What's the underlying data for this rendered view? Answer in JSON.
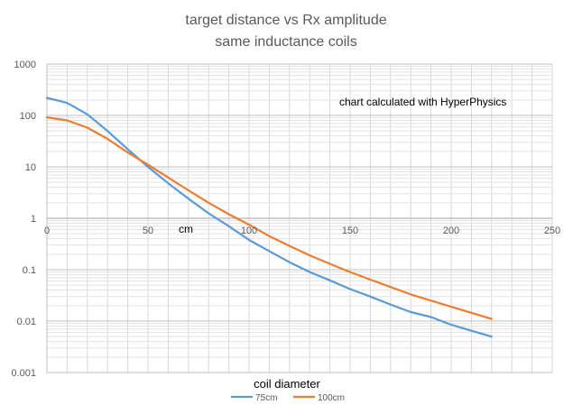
{
  "chart_data": {
    "type": "line",
    "title": [
      "target distance vs Rx amplitude",
      "same inductance coils"
    ],
    "xlabel": "coil diameter",
    "xunit_label": "cm",
    "annotation": "chart calculated with HyperPhysics",
    "x_ticks": [
      "0",
      "50",
      "100",
      "150",
      "200",
      "250"
    ],
    "y_ticks": [
      "1000",
      "100",
      "10",
      "1",
      "0.1",
      "0.01",
      "0.001"
    ],
    "xlim": [
      0,
      250
    ],
    "ylim": [
      0.001,
      1000
    ],
    "yscale": "log",
    "grid": true,
    "legend_position": "bottom",
    "series": [
      {
        "name": "75cm",
        "color": "#5b9bd5",
        "x": [
          0,
          10,
          20,
          30,
          40,
          50,
          60,
          70,
          80,
          90,
          100,
          110,
          120,
          130,
          140,
          150,
          160,
          170,
          180,
          190,
          200,
          210,
          220
        ],
        "y": [
          220,
          175,
          105,
          50,
          22,
          10,
          4.8,
          2.4,
          1.25,
          0.7,
          0.38,
          0.23,
          0.14,
          0.09,
          0.062,
          0.042,
          0.03,
          0.021,
          0.015,
          0.012,
          0.0085,
          0.0065,
          0.005
        ]
      },
      {
        "name": "100cm",
        "color": "#ed7d31",
        "x": [
          0,
          10,
          20,
          30,
          40,
          50,
          60,
          70,
          80,
          90,
          100,
          110,
          120,
          130,
          140,
          150,
          160,
          170,
          180,
          190,
          200,
          210,
          220
        ],
        "y": [
          92,
          80,
          58,
          35,
          19,
          11,
          6.2,
          3.5,
          2.0,
          1.2,
          0.75,
          0.45,
          0.29,
          0.19,
          0.13,
          0.09,
          0.064,
          0.046,
          0.033,
          0.025,
          0.019,
          0.0145,
          0.011
        ]
      }
    ]
  }
}
